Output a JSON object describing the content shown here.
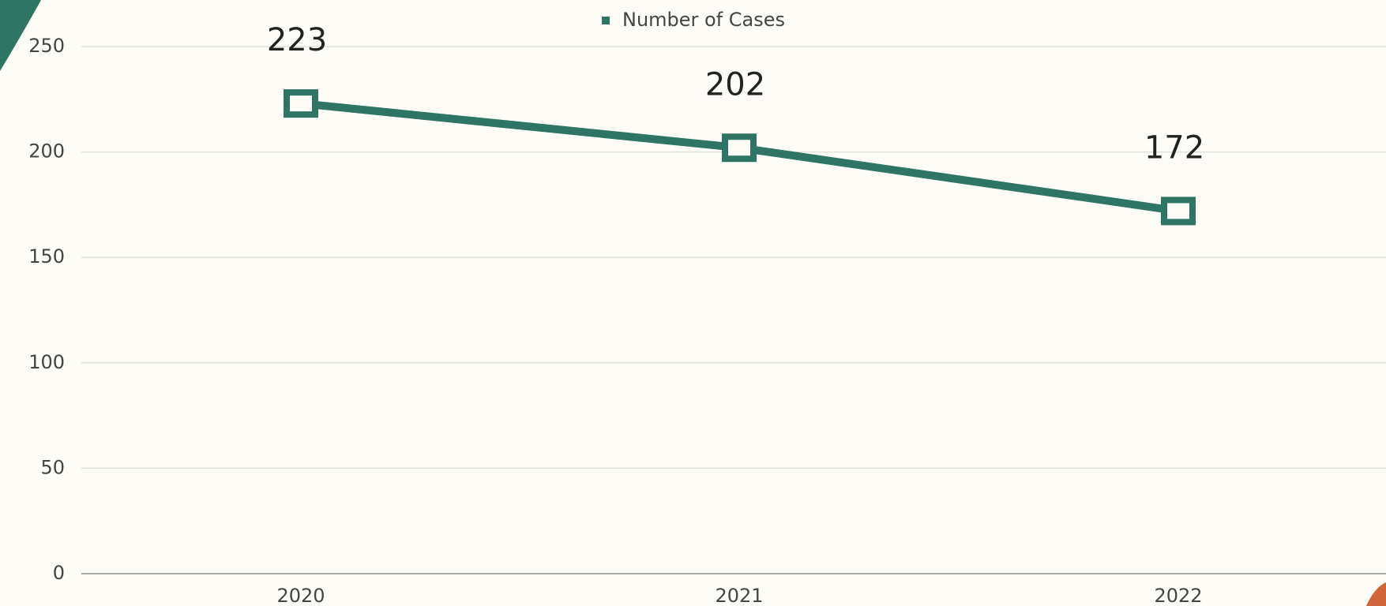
{
  "chart_data": {
    "type": "line",
    "categories": [
      "2020",
      "2021",
      "2022"
    ],
    "series": [
      {
        "name": "Number of Cases",
        "color": "#2e7565",
        "values": [
          223,
          202,
          172
        ]
      }
    ],
    "ylim": [
      0,
      250
    ],
    "yticks": [
      0,
      50,
      100,
      150,
      200,
      250
    ],
    "grid": true,
    "legend": "top"
  }
}
